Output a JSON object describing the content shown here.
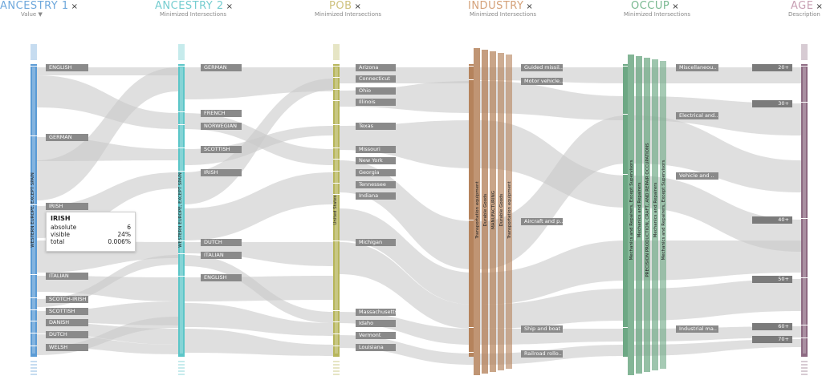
{
  "dimensions": [
    {
      "title": "ANCESTRY 1",
      "subtitle": "Value ▼",
      "color": "#6fa8dc",
      "bar_color": "#5b9bd5"
    },
    {
      "title": "ANCESTRY 2",
      "subtitle": "Minimized Intersections",
      "color": "#76cdd0",
      "bar_color": "#5cc6c8"
    },
    {
      "title": "POB",
      "subtitle": "Minimized Intersections",
      "color": "#cfc27f",
      "bar_color": "#b6b55a"
    },
    {
      "title": "INDUSTRY",
      "subtitle": "Minimized Intersections",
      "color": "#d5a27a",
      "bar_color": "#b5835c"
    },
    {
      "title": "OCCUP",
      "subtitle": "Minimized Intersections",
      "color": "#79b890",
      "bar_color": "#6da884"
    },
    {
      "title": "AGE",
      "subtitle": "Description ▲",
      "color": "#c8a0b4",
      "bar_color": "#8d6a82"
    }
  ],
  "close_icon": "×",
  "chart_data": {
    "type": "parallel-sets",
    "axes": [
      {
        "name": "ANCESTRY 1",
        "group_label": "WESTERN EUROPE, EXCEPT SPAIN",
        "categories": [
          "ENGLISH",
          "GERMAN",
          "IRISH",
          "ITALIAN",
          "SCOTCH-IRISH",
          "SCOTTISH",
          "DANISH",
          "DUTCH",
          "WELSH"
        ]
      },
      {
        "name": "ANCESTRY 2",
        "group_label": "WESTERN EUROPE, EXCEPT SPAIN",
        "categories": [
          "GERMAN",
          "FRENCH",
          "NORWEGIAN",
          "SCOTTISH",
          "IRISH",
          "DUTCH",
          "ITALIAN",
          "ENGLISH"
        ]
      },
      {
        "name": "POB",
        "group_label": "United States",
        "categories": [
          "Arizona",
          "Connecticut",
          "Ohio",
          "Illinois",
          "Texas",
          "Missouri",
          "New York",
          "Georgia",
          "Tennessee",
          "Indiana",
          "Michigan",
          "Massachusetts",
          "Idaho",
          "Vermont",
          "Louisiana"
        ]
      },
      {
        "name": "INDUSTRY",
        "group_labels": [
          "Transportation equipment",
          "Durable Goods",
          "MANUFACTURING",
          "Durable Goods",
          "Transportation equipment"
        ],
        "categories": [
          "Guided missil..",
          "Motor vehicle..",
          "Aircraft and p..",
          "Ship and boat ..",
          "Railroad rollo.."
        ]
      },
      {
        "name": "OCCUP",
        "group_labels": [
          "Mechanics and Repairers, Except Supervisors",
          "Mechanics and Repairers",
          "PRECISION PRODUCTION, CRAFT, AND REPAIR OCCUPATIONS",
          "Mechanics and Repairers",
          "Mechanics and Repairers, Except Supervisors"
        ],
        "categories": [
          "Miscellaneou..",
          "Electrical and..",
          "Vehicle and ..",
          "Industrial ma.."
        ]
      },
      {
        "name": "AGE",
        "categories": [
          "20+",
          "30+",
          "40+",
          "50+",
          "60+",
          "70+"
        ]
      }
    ],
    "tooltip": {
      "category": "IRISH",
      "absolute_label": "absolute",
      "absolute": "6",
      "visible_label": "visible",
      "visible": "24%",
      "total_label": "total",
      "total": "0.006%"
    }
  }
}
